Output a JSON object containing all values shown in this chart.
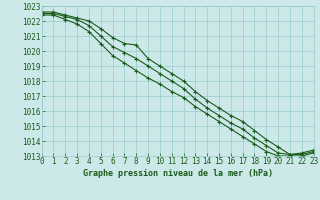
{
  "title": "Graphe pression niveau de la mer (hPa)",
  "bg_color": "#cce8e8",
  "grid_color": "#99cccc",
  "line_color": "#1a5c1a",
  "x_min": 0,
  "x_max": 23,
  "y_min": 1013,
  "y_max": 1023,
  "x": [
    0,
    1,
    2,
    3,
    4,
    5,
    6,
    7,
    8,
    9,
    10,
    11,
    12,
    13,
    14,
    15,
    16,
    17,
    18,
    19,
    20,
    21,
    22,
    23
  ],
  "values1": [
    1022.6,
    1022.6,
    1022.4,
    1022.2,
    1022.0,
    1021.5,
    1020.9,
    1020.5,
    1020.4,
    1019.5,
    1019.0,
    1018.5,
    1018.0,
    1017.3,
    1016.7,
    1016.2,
    1015.7,
    1015.3,
    1014.7,
    1014.1,
    1013.6,
    1013.1,
    1013.2,
    1013.4
  ],
  "values2": [
    1022.5,
    1022.5,
    1022.3,
    1022.1,
    1021.7,
    1021.0,
    1020.3,
    1019.9,
    1019.5,
    1019.0,
    1018.5,
    1018.0,
    1017.5,
    1016.8,
    1016.2,
    1015.7,
    1015.2,
    1014.8,
    1014.2,
    1013.7,
    1013.2,
    1013.1,
    1013.1,
    1013.3
  ],
  "values3": [
    1022.4,
    1022.4,
    1022.1,
    1021.8,
    1021.3,
    1020.5,
    1019.7,
    1019.2,
    1018.7,
    1018.2,
    1017.8,
    1017.3,
    1016.9,
    1016.3,
    1015.8,
    1015.3,
    1014.8,
    1014.3,
    1013.8,
    1013.3,
    1013.0,
    1013.0,
    1013.0,
    1013.2
  ],
  "yticks": [
    1013,
    1014,
    1015,
    1016,
    1017,
    1018,
    1019,
    1020,
    1021,
    1022,
    1023
  ],
  "xticks": [
    0,
    1,
    2,
    3,
    4,
    5,
    6,
    7,
    8,
    9,
    10,
    11,
    12,
    13,
    14,
    15,
    16,
    17,
    18,
    19,
    20,
    21,
    22,
    23
  ],
  "xlabel_fontsize": 6.0,
  "tick_fontsize": 5.5,
  "linewidth": 0.8,
  "markersize": 3.5,
  "markeredgewidth": 0.8
}
